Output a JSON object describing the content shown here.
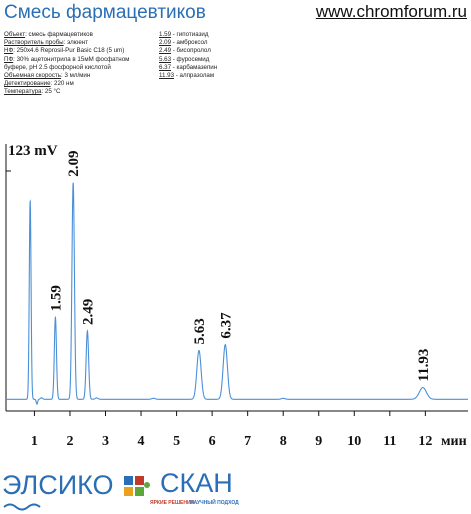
{
  "header": {
    "title": "Смесь фармацевтиков",
    "site": "www.chromforum.ru"
  },
  "conditions": [
    {
      "label": "Объект",
      "value": ": смесь фармацевтиков"
    },
    {
      "label": "Растворитель пробы",
      "value": ": элюент"
    },
    {
      "label": "НФ",
      "value": ": 250x4.6 Reprosil-Pur Basic C18  (5 um)"
    },
    {
      "label": "ПФ",
      "value": ": 30% ацетонитрила в 15мМ фосфатном"
    },
    {
      "label": "",
      "value": "буфере, pH 2.5 фосфорной кислотой"
    },
    {
      "label": "Объемная скорость",
      "value": ": 3 мл/мин"
    },
    {
      "label": "Детектирование",
      "value": ": 220 нм"
    },
    {
      "label": "Температура",
      "value": ": 25 °С"
    }
  ],
  "peak_list": [
    {
      "rt": "1.59",
      "name": " - гипотиазид"
    },
    {
      "rt": "2.09",
      "name": " - амброксол"
    },
    {
      "rt": "2.49",
      "name": " - бисопролол"
    },
    {
      "rt": "5.63",
      "name": " - фуросемид"
    },
    {
      "rt": "6.37",
      "name": " - карбамазепин"
    },
    {
      "rt": "11.93",
      "name": " - алпразолам"
    }
  ],
  "chart_data": {
    "type": "line",
    "title": "",
    "xlabel": "мин",
    "ylabel": "",
    "y_scale_label": "123 mV",
    "xlim": [
      0.2,
      13.2
    ],
    "ylim": [
      0,
      123
    ],
    "x_ticks": [
      1,
      2,
      3,
      4,
      5,
      6,
      7,
      8,
      9,
      10,
      11,
      12
    ],
    "baseline": 6,
    "series": [
      {
        "peaks": [
          {
            "x": 0.88,
            "height": 102,
            "width": 0.025,
            "label": ""
          },
          {
            "x": 1.59,
            "height": 42,
            "width": 0.03,
            "label": "1.59"
          },
          {
            "x": 2.09,
            "height": 111,
            "width": 0.035,
            "label": "2.09"
          },
          {
            "x": 2.49,
            "height": 35,
            "width": 0.035,
            "label": "2.49"
          },
          {
            "x": 5.63,
            "height": 25,
            "width": 0.06,
            "label": "5.63"
          },
          {
            "x": 6.37,
            "height": 28,
            "width": 0.06,
            "label": "6.37"
          },
          {
            "x": 11.93,
            "height": 6,
            "width": 0.1,
            "label": "11.93"
          }
        ],
        "dip": {
          "x": 1.07,
          "depth": 2.5,
          "width": 0.02
        },
        "small_bumps": [
          {
            "x": 1.2,
            "height": 0.8,
            "width": 0.03
          },
          {
            "x": 2.75,
            "height": 0.7,
            "width": 0.04
          },
          {
            "x": 4.35,
            "height": 0.5,
            "width": 0.05
          },
          {
            "x": 8.0,
            "height": 0.5,
            "width": 0.05
          }
        ]
      }
    ]
  },
  "logos": {
    "elsiko": "ЭЛСИКО",
    "skan": "СКАН",
    "tagline_left": "ЯРКИЕ РЕШЕНИЯ",
    "tagline_right": "НАУЧНЫЙ ПОДХОД"
  },
  "colors": {
    "trace": "#4a90d9",
    "brand_blue": "#2a6fb6",
    "brand_red": "#c03a2b"
  }
}
